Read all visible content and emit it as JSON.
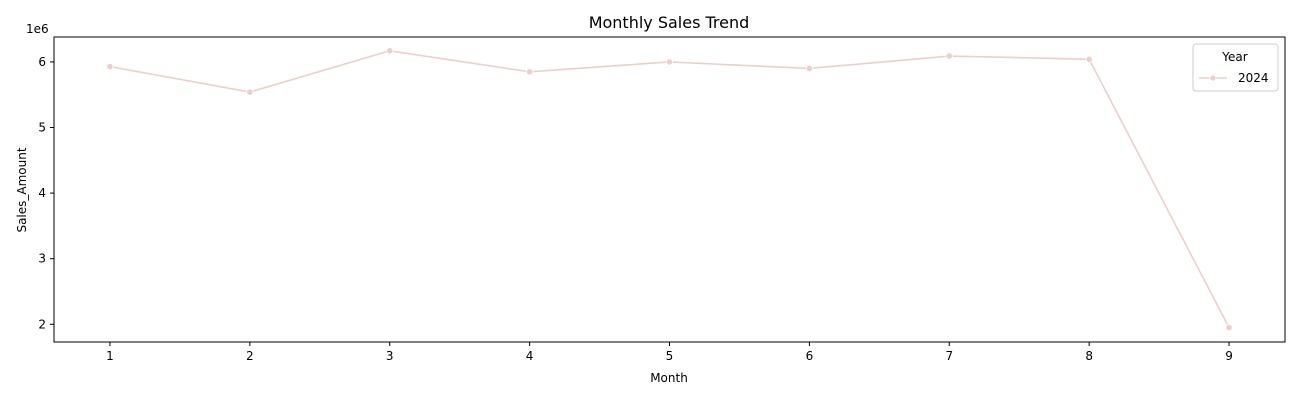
{
  "chart_data": {
    "type": "line",
    "title": "Monthly Sales Trend",
    "xlabel": "Month",
    "ylabel": "Sales_Amount",
    "y_offset_label": "1e6",
    "x": [
      1,
      2,
      3,
      4,
      5,
      6,
      7,
      8,
      9
    ],
    "xlim": [
      0.6,
      9.4
    ],
    "ylim": [
      1730000,
      6380000
    ],
    "y_scale_factor": 1000000,
    "x_ticks": [
      1,
      2,
      3,
      4,
      5,
      6,
      7,
      8,
      9
    ],
    "y_ticks": [
      2000000,
      3000000,
      4000000,
      5000000,
      6000000
    ],
    "grid": false,
    "legend": {
      "title": "Year",
      "placement": "top-right"
    },
    "series": [
      {
        "name": "2024",
        "color": "#ebd0c9",
        "values": [
          5930000,
          5540000,
          6170000,
          5850000,
          6000000,
          5900000,
          6090000,
          6040000,
          1950000
        ]
      }
    ]
  }
}
